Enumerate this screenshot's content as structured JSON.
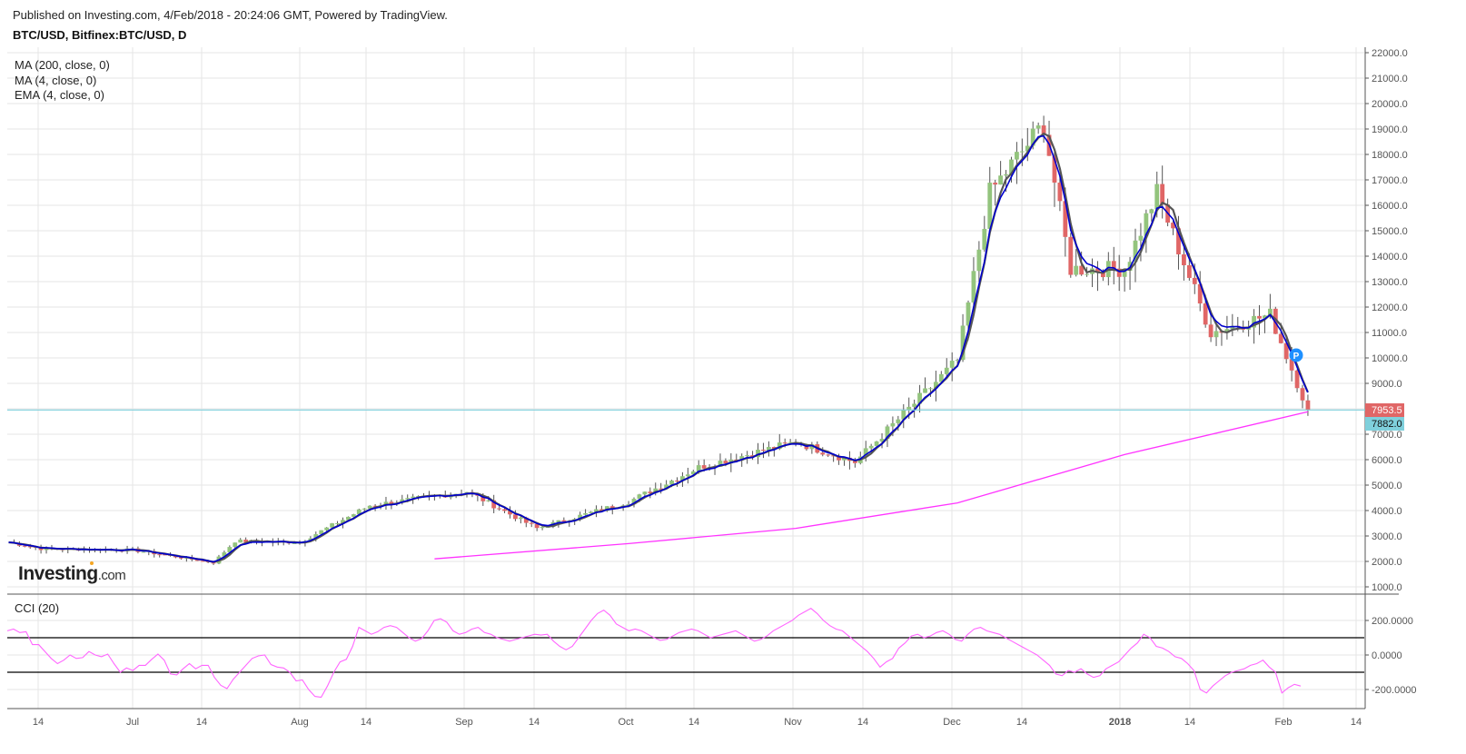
{
  "header": {
    "published": "Published on Investing.com, 4/Feb/2018 - 20:24:06 GMT, Powered by TradingView.",
    "symbol": "BTC/USD, Bitfinex:BTC/USD, D"
  },
  "legend": [
    {
      "label": "MA (200, close, 0)",
      "color": "#ff33ff"
    },
    {
      "label": "MA (4, close, 0)",
      "color": "#555555"
    },
    {
      "label": "EMA (4, close, 0)",
      "color": "#0000cc"
    }
  ],
  "cci_label": "CCI (20)",
  "logo": {
    "main": "Investing",
    "suffix": ".com"
  },
  "badges": {
    "last_price": "7953.5",
    "last_price_color": "#e06666",
    "ma200_value": "7882.0",
    "ma200_color": "#7fd0dc"
  },
  "marker": {
    "label": "P",
    "color": "#1e90ff"
  },
  "colors": {
    "up": "#93c47d",
    "down": "#e06666",
    "wick": "#555555",
    "ma200": "#ff33ff",
    "ema4": "#0000cc",
    "ma4": "#555555",
    "cci": "#ff66ff",
    "grid": "#e6e6e6",
    "hline": "#7fd0dc"
  },
  "chart_data": [
    {
      "type": "candlestick",
      "title": "BTC/USD, Bitfinex:BTC/USD, D",
      "x_ticks": [
        "14",
        "Jul",
        "14",
        "Aug",
        "14",
        "Sep",
        "14",
        "Oct",
        "14",
        "Nov",
        "14",
        "Dec",
        "14",
        "2018",
        "14",
        "Feb",
        "14"
      ],
      "y_ticks": [
        "22000.0",
        "21000.0",
        "20000.0",
        "19000.0",
        "18000.0",
        "17000.0",
        "16000.0",
        "15000.0",
        "14000.0",
        "13000.0",
        "12000.0",
        "11000.0",
        "10000.0",
        "9000.0",
        "8000.0",
        "7000.0",
        "6000.0",
        "5000.0",
        "4000.0",
        "3000.0",
        "2000.0",
        "1000.0"
      ],
      "ylim": [
        1000,
        22000
      ],
      "grid": true,
      "last_price": 7953.5,
      "ma200_last": 7882.0,
      "close_series_monthly_approx": [
        {
          "date": "2017-06-08",
          "close": 2750
        },
        {
          "date": "2017-06-14",
          "close": 2500
        },
        {
          "date": "2017-07-01",
          "close": 2450
        },
        {
          "date": "2017-07-16",
          "close": 1950
        },
        {
          "date": "2017-07-20",
          "close": 2800
        },
        {
          "date": "2017-08-01",
          "close": 2750
        },
        {
          "date": "2017-08-14",
          "close": 4200
        },
        {
          "date": "2017-09-01",
          "close": 4750
        },
        {
          "date": "2017-09-14",
          "close": 3300
        },
        {
          "date": "2017-10-01",
          "close": 4350
        },
        {
          "date": "2017-10-14",
          "close": 5700
        },
        {
          "date": "2017-11-01",
          "close": 6700
        },
        {
          "date": "2017-11-12",
          "close": 5900
        },
        {
          "date": "2017-12-01",
          "close": 9900
        },
        {
          "date": "2017-12-07",
          "close": 16500
        },
        {
          "date": "2017-12-17",
          "close": 19200
        },
        {
          "date": "2017-12-22",
          "close": 13500
        },
        {
          "date": "2018-01-01",
          "close": 13500
        },
        {
          "date": "2018-01-07",
          "close": 16500
        },
        {
          "date": "2018-01-17",
          "close": 11000
        },
        {
          "date": "2018-01-28",
          "close": 11700
        },
        {
          "date": "2018-02-04",
          "close": 7953.5
        }
      ],
      "ma200_approx": [
        {
          "date": "2017-08-26",
          "value": 2100
        },
        {
          "date": "2017-10-01",
          "value": 2700
        },
        {
          "date": "2017-11-01",
          "value": 3300
        },
        {
          "date": "2017-12-01",
          "value": 4300
        },
        {
          "date": "2018-01-01",
          "value": 6200
        },
        {
          "date": "2018-02-04",
          "value": 7882
        }
      ]
    },
    {
      "type": "line",
      "title": "CCI (20)",
      "y_ticks": [
        "200.0000",
        "0.0000",
        "-200.0000"
      ],
      "hlines": [
        100,
        -100
      ],
      "ylim": [
        -300,
        300
      ],
      "values_approx_daily": [
        140,
        150,
        130,
        135,
        60,
        60,
        20,
        -20,
        -50,
        -30,
        0,
        -20,
        -15,
        20,
        0,
        -10,
        5,
        -50,
        -100,
        -75,
        -90,
        -60,
        -60,
        -25,
        5,
        -30,
        -110,
        -115,
        -80,
        -50,
        -80,
        -60,
        -60,
        -130,
        -175,
        -195,
        -140,
        -100,
        -60,
        -20,
        -5,
        0,
        -55,
        -70,
        -75,
        -100,
        -150,
        -145,
        -200,
        -240,
        -245,
        -180,
        -100,
        -40,
        -25,
        50,
        160,
        140,
        120,
        135,
        160,
        170,
        160,
        130,
        100,
        80,
        95,
        140,
        200,
        210,
        190,
        140,
        120,
        130,
        150,
        160,
        130,
        120,
        100,
        90,
        80,
        90,
        100,
        110,
        120,
        115,
        120,
        80,
        50,
        30,
        50,
        100,
        150,
        200,
        240,
        260,
        230,
        180,
        160,
        140,
        150,
        140,
        120,
        100,
        85,
        90,
        110,
        130,
        140,
        150,
        140,
        120,
        100,
        110,
        120,
        130,
        140,
        120,
        100,
        80,
        90,
        110,
        140,
        160,
        180,
        200,
        230,
        250,
        270,
        240,
        200,
        170,
        150,
        140,
        110,
        80,
        50,
        20,
        -20,
        -70,
        -40,
        -20,
        40,
        70,
        110,
        120,
        100,
        110,
        130,
        140,
        120,
        90,
        80,
        120,
        150,
        160,
        140,
        130,
        120,
        100,
        80,
        60,
        40,
        20,
        0,
        -30,
        -60,
        -110,
        -120,
        -90,
        -100,
        -80,
        -110,
        -130,
        -120,
        -80,
        -60,
        -40,
        0,
        40,
        70,
        120,
        100,
        50,
        40,
        20,
        -10,
        -20,
        -50,
        -90,
        -200,
        -220,
        -180,
        -150,
        -120,
        -100,
        -90,
        -80,
        -60,
        -50,
        -30,
        -70,
        -100,
        -220,
        -190,
        -170,
        -180
      ]
    }
  ]
}
